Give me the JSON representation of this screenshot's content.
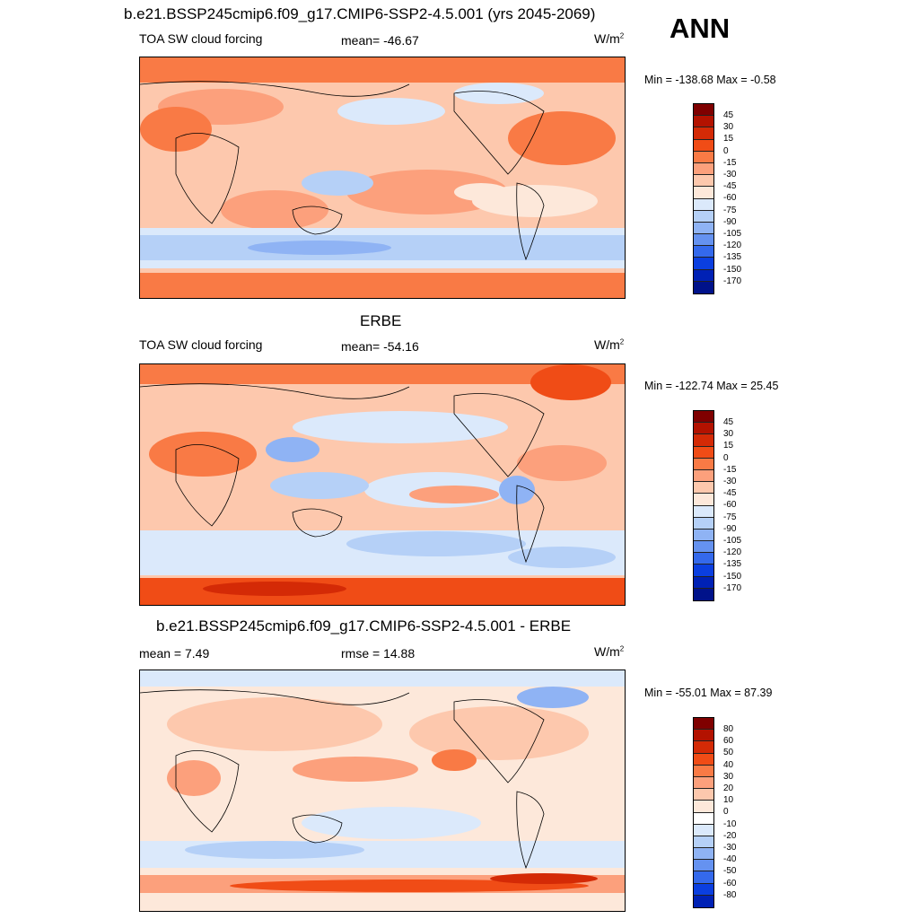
{
  "season": "ANN",
  "palette": {
    "ssp": [
      "#7f0000",
      "#b31200",
      "#d42a06",
      "#f04c16",
      "#f97a45",
      "#fca07c",
      "#fdc8ad",
      "#fde8da",
      "#dbe9fb",
      "#b5d0f7",
      "#8fb3f4",
      "#6592f0",
      "#3469ec",
      "#0b3fe0",
      "#0021b5",
      "#00128a"
    ],
    "diff": [
      "#7f0000",
      "#b31200",
      "#d42a06",
      "#f04c16",
      "#f97a45",
      "#fca07c",
      "#fdc8ad",
      "#fde8da",
      "#ffffff",
      "#dbe9fb",
      "#b5d0f7",
      "#8fb3f4",
      "#6592f0",
      "#3469ec",
      "#0b3fe0",
      "#0021b5",
      "#00128a"
    ]
  },
  "panels": [
    {
      "title": "b.e21.BSSP245cmip6.f09_g17.CMIP6-SSP2-4.5.001 (yrs 2045-2069)",
      "left_label": "TOA SW cloud forcing",
      "center_label": "mean= -46.67",
      "units": "W/m",
      "units_sup": "2",
      "minmax": "Min = -138.68 Max =  -0.58",
      "ticks": [
        "45",
        "30",
        "15",
        "0",
        "-15",
        "-30",
        "-45",
        "-60",
        "-75",
        "-90",
        "-105",
        "-120",
        "-135",
        "-150",
        "-170"
      ]
    },
    {
      "title": "ERBE",
      "left_label": "TOA SW cloud forcing",
      "center_label": "mean= -54.16",
      "units": "W/m",
      "units_sup": "2",
      "minmax": "Min = -122.74 Max =  25.45",
      "ticks": [
        "45",
        "30",
        "15",
        "0",
        "-15",
        "-30",
        "-45",
        "-60",
        "-75",
        "-90",
        "-105",
        "-120",
        "-135",
        "-150",
        "-170"
      ]
    },
    {
      "title": "b.e21.BSSP245cmip6.f09_g17.CMIP6-SSP2-4.5.001 - ERBE",
      "left_label": "mean =   7.49",
      "center_label": "rmse =  14.88",
      "units": "W/m",
      "units_sup": "2",
      "minmax": "Min = -55.01 Max =  87.39",
      "ticks": [
        "80",
        "60",
        "50",
        "40",
        "30",
        "20",
        "10",
        "0",
        "-10",
        "-20",
        "-30",
        "-40",
        "-50",
        "-60",
        "-80"
      ]
    }
  ]
}
